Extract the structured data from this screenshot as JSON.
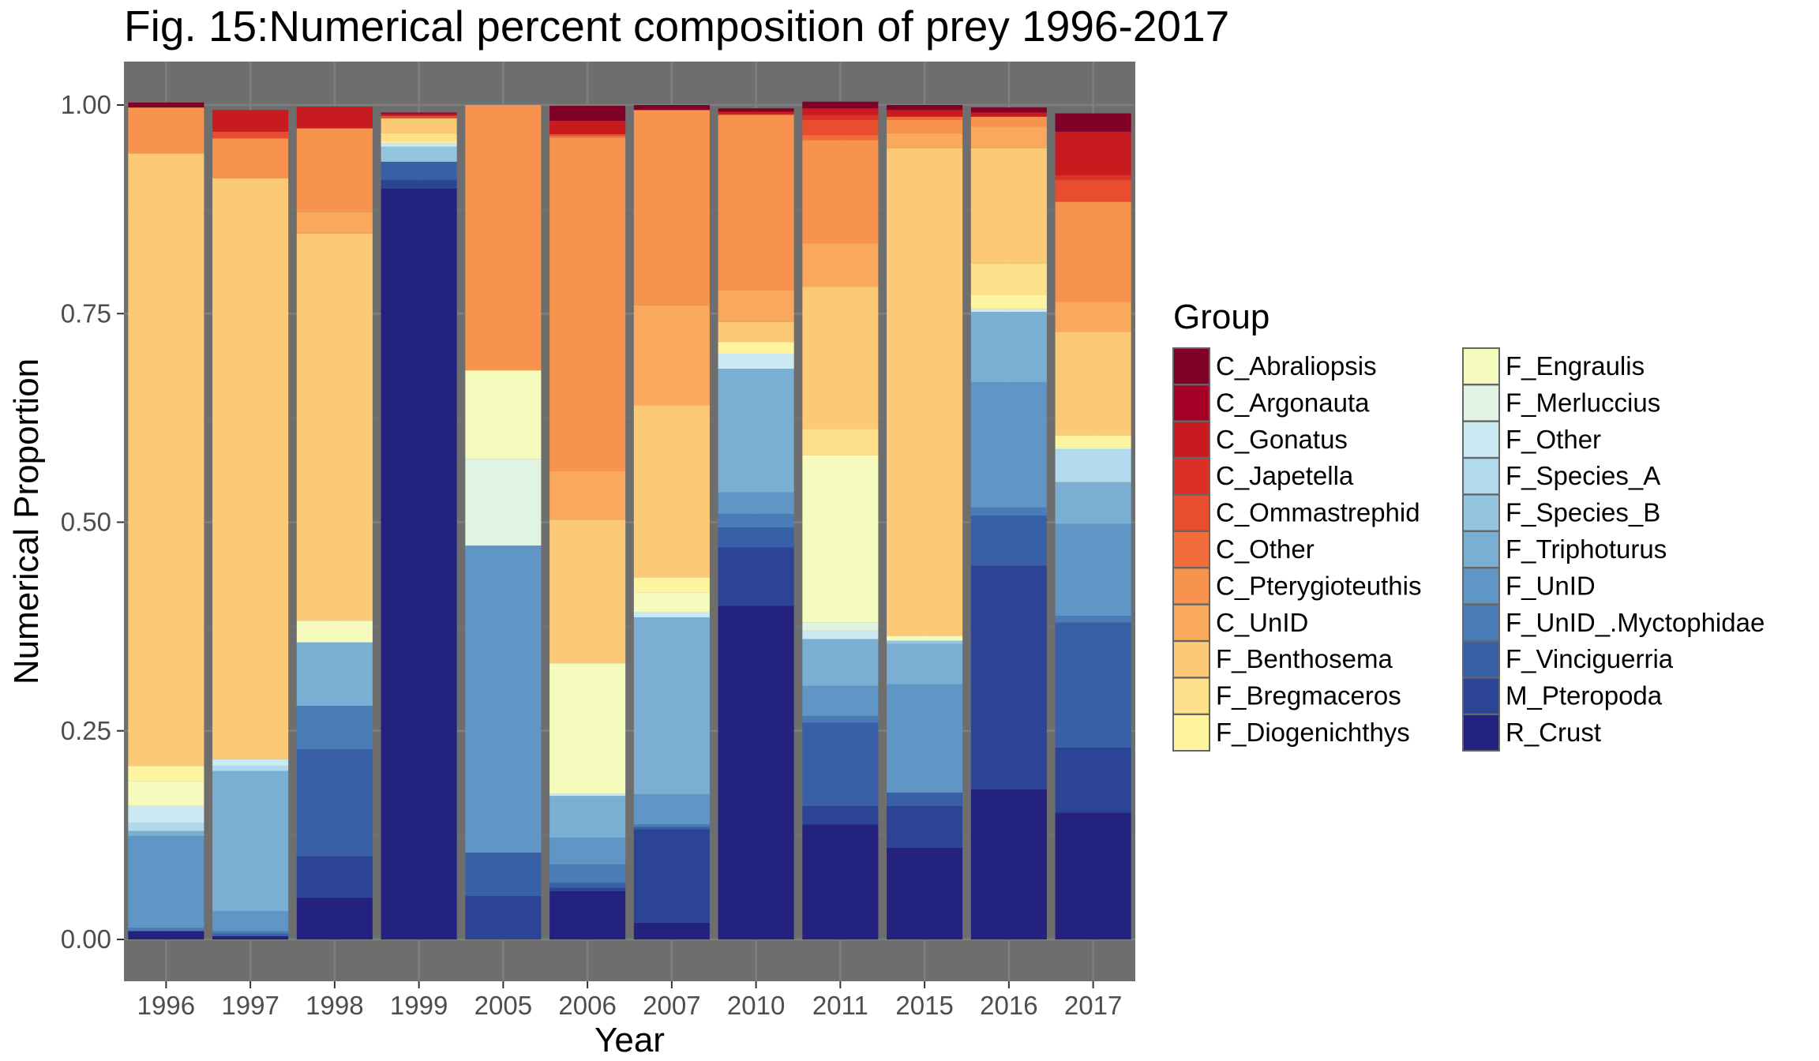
{
  "chart_data": {
    "type": "bar",
    "stacked": true,
    "title": "Fig. 15:Numerical percent composition of prey 1996-2017",
    "xlabel": "Year",
    "ylabel": "Numerical Proportion",
    "ylim": [
      0,
      1
    ],
    "yticks": [
      "0.00",
      "0.25",
      "0.50",
      "0.75",
      "1.00"
    ],
    "grid": true,
    "legend": {
      "title": "Group",
      "position": "right",
      "columns": 2
    },
    "categories": [
      "1996",
      "1997",
      "1998",
      "1999",
      "2005",
      "2006",
      "2007",
      "2010",
      "2011",
      "2015",
      "2016",
      "2017"
    ],
    "series": [
      {
        "name": "C_Abraliopsis",
        "color": "#800026",
        "values": [
          0.006,
          0,
          0,
          0,
          0,
          0.018,
          0.006,
          0.004,
          0.008,
          0.006,
          0.006,
          0.022
        ]
      },
      {
        "name": "C_Argonauta",
        "color": "#a50026",
        "values": [
          0,
          0,
          0,
          0.002,
          0,
          0,
          0,
          0,
          0,
          0,
          0,
          0
        ]
      },
      {
        "name": "C_Gonatus",
        "color": "#c81b1f",
        "values": [
          0,
          0.026,
          0.026,
          0.002,
          0,
          0.016,
          0,
          0.003,
          0.008,
          0.008,
          0.005,
          0.052
        ]
      },
      {
        "name": "C_Japetella",
        "color": "#da3025",
        "values": [
          0,
          0,
          0,
          0,
          0,
          0,
          0,
          0,
          0.006,
          0,
          0,
          0.006
        ]
      },
      {
        "name": "C_Ommastrephid",
        "color": "#e84d30",
        "values": [
          0,
          0.008,
          0,
          0.003,
          0,
          0.002,
          0,
          0.001,
          0.018,
          0,
          0,
          0.026
        ]
      },
      {
        "name": "C_Other",
        "color": "#f26c3c",
        "values": [
          0,
          0,
          0,
          0,
          0,
          0.002,
          0,
          0,
          0.006,
          0.004,
          0,
          0
        ]
      },
      {
        "name": "C_Pterygioteuthis",
        "color": "#f7934d",
        "values": [
          0.055,
          0.048,
          0.1,
          0,
          0.318,
          0.4,
          0.234,
          0.21,
          0.124,
          0.016,
          0.012,
          0.12
        ]
      },
      {
        "name": "C_UnID",
        "color": "#f9a85c",
        "values": [
          0,
          0,
          0.026,
          0,
          0,
          0.058,
          0.12,
          0.038,
          0.052,
          0.018,
          0.026,
          0.036
        ]
      },
      {
        "name": "F_Benthosema",
        "color": "#fcca76",
        "values": [
          0.734,
          0.696,
          0.464,
          0.018,
          0,
          0.172,
          0.206,
          0.024,
          0.17,
          0.584,
          0.138,
          0.124
        ]
      },
      {
        "name": "F_Bregmaceros",
        "color": "#fee08b",
        "values": [
          0,
          0,
          0,
          0.01,
          0,
          0,
          0,
          0,
          0.032,
          0,
          0.038,
          0
        ]
      },
      {
        "name": "F_Diogenichthys",
        "color": "#fff5a0",
        "values": [
          0.018,
          0,
          0,
          0.002,
          0,
          0,
          0.018,
          0.014,
          0,
          0,
          0.016,
          0.014
        ]
      },
      {
        "name": "F_Engraulis",
        "color": "#f4fbbc",
        "values": [
          0.03,
          0,
          0.026,
          0,
          0.106,
          0.156,
          0.024,
          0,
          0.2,
          0.006,
          0,
          0.002
        ]
      },
      {
        "name": "F_Merluccius",
        "color": "#e1f3e3",
        "values": [
          0,
          0,
          0,
          0,
          0.104,
          0,
          0,
          0,
          0.01,
          0,
          0,
          0
        ]
      },
      {
        "name": "F_Other",
        "color": "#cbe9f2",
        "values": [
          0.02,
          0.008,
          0,
          0.004,
          0,
          0.003,
          0.006,
          0.018,
          0.01,
          0,
          0.004,
          0
        ]
      },
      {
        "name": "F_Species_A",
        "color": "#b1dbec",
        "values": [
          0.01,
          0.006,
          0,
          0,
          0,
          0,
          0,
          0,
          0,
          0,
          0,
          0.04
        ]
      },
      {
        "name": "F_Species_B",
        "color": "#93c5de",
        "values": [
          0,
          0,
          0,
          0.018,
          0,
          0,
          0,
          0,
          0,
          0.004,
          0,
          0
        ]
      },
      {
        "name": "F_Triphoturus",
        "color": "#7aafd3",
        "values": [
          0.006,
          0.168,
          0.076,
          0,
          0,
          0.05,
          0.212,
          0.148,
          0.056,
          0.048,
          0.084,
          0.05
        ]
      },
      {
        "name": "F_UnID",
        "color": "#6096c6",
        "values": [
          0.11,
          0.024,
          0,
          0,
          0.368,
          0.032,
          0.036,
          0.026,
          0.036,
          0.13,
          0.15,
          0.11
        ]
      },
      {
        "name": "F_UnID_.Myctophidae",
        "color": "#4a7db8",
        "values": [
          0.004,
          0.003,
          0.052,
          0,
          0,
          0.022,
          0.003,
          0.016,
          0.008,
          0,
          0.01,
          0.008
        ]
      },
      {
        "name": "F_Vinciguerria",
        "color": "#3760a6",
        "values": [
          0,
          0.003,
          0.128,
          0.022,
          0.052,
          0.006,
          0.003,
          0.024,
          0.1,
          0.016,
          0.06,
          0.15
        ]
      },
      {
        "name": "M_Pteropoda",
        "color": "#2c4495",
        "values": [
          0,
          0,
          0.05,
          0.01,
          0.052,
          0.004,
          0.112,
          0.07,
          0.022,
          0.05,
          0.268,
          0.078
        ]
      },
      {
        "name": "R_Crust",
        "color": "#23237f",
        "values": [
          0.01,
          0.004,
          0.05,
          0.9,
          0,
          0.058,
          0.02,
          0.4,
          0.138,
          0.11,
          0.18,
          0.152
        ]
      }
    ]
  }
}
